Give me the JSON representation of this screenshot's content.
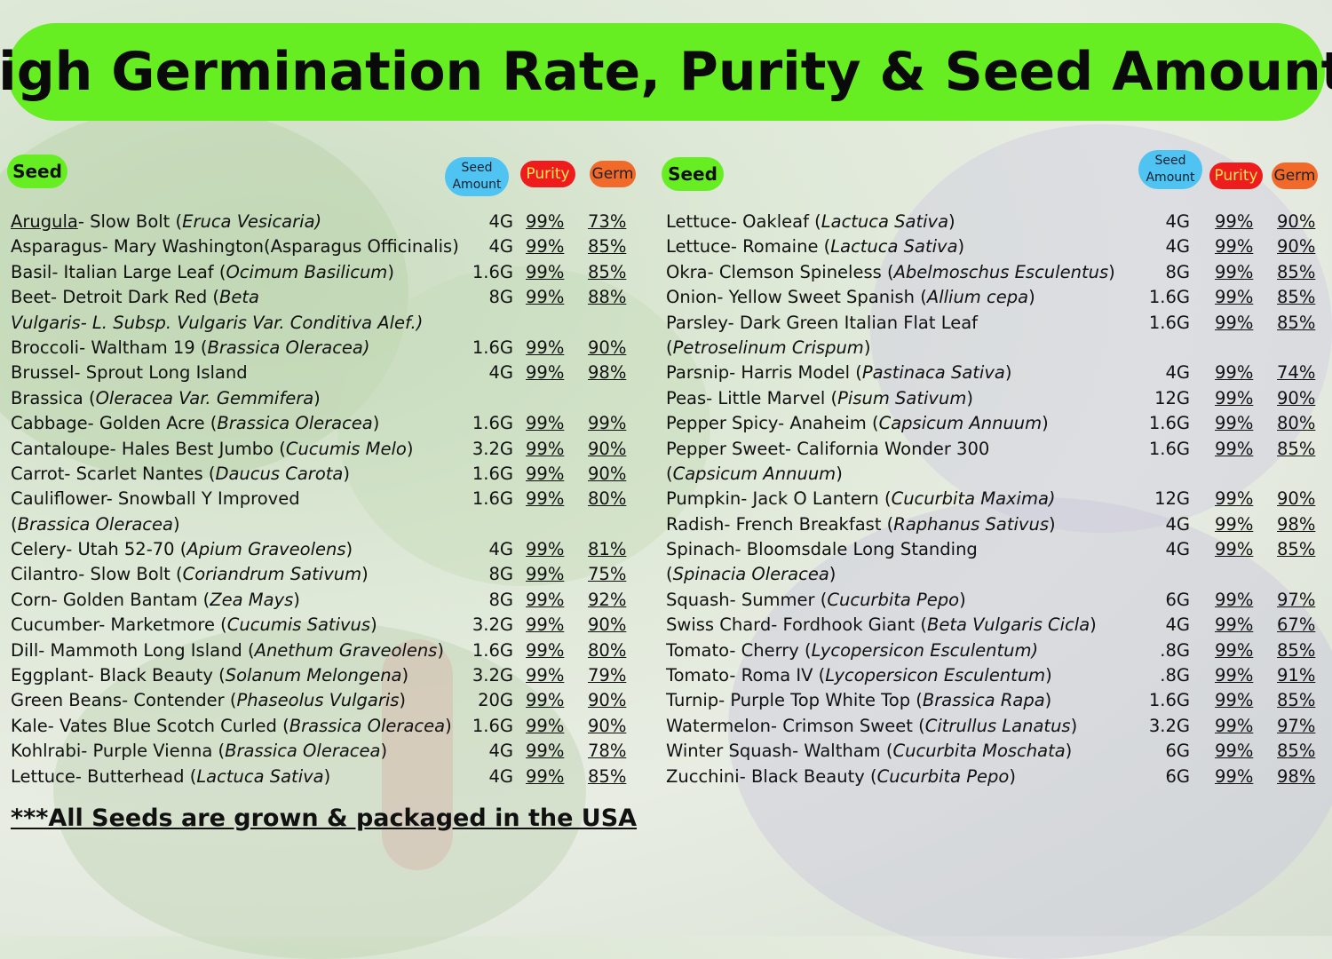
{
  "title": "High Germination Rate, Purity & Seed Amounts",
  "headers": {
    "seed": "Seed",
    "amount_line1": "Seed",
    "amount_line2": "Amount",
    "purity": "Purity",
    "germ": "Germ"
  },
  "left_rows": [
    {
      "name": [
        [
          "Arugula",
          "u"
        ],
        [
          "- Slow Bolt (",
          ""
        ],
        [
          "Eruca Vesicaria)",
          "i"
        ]
      ],
      "amount": "4G",
      "purity": "99%",
      "germ": "73%"
    },
    {
      "name": [
        [
          "Asparagus- Mary Washington(",
          ""
        ],
        [
          "Asparagus Officinalis",
          ""
        ],
        [
          ")",
          ""
        ]
      ],
      "amount": "4G",
      "purity": "99%",
      "germ": "85%"
    },
    {
      "name": [
        [
          "Basil- Italian Large Leaf (",
          ""
        ],
        [
          "Ocimum Basilicum",
          "i"
        ],
        [
          ")",
          ""
        ]
      ],
      "amount": "1.6G",
      "purity": "99%",
      "germ": "85%"
    },
    {
      "name": [
        [
          "Beet- Detroit Dark Red (",
          ""
        ],
        [
          "Beta",
          "i"
        ]
      ],
      "amount": "8G",
      "purity": "99%",
      "germ": "88%"
    },
    {
      "name": [
        [
          "Vulgaris- L. Subsp. Vulgaris Var. Conditiva Alef.)",
          "i"
        ]
      ],
      "amount": "",
      "purity": "",
      "germ": ""
    },
    {
      "name": [
        [
          "Broccoli- Waltham 19 (",
          ""
        ],
        [
          "Brassica Oleracea)",
          "i"
        ]
      ],
      "amount": "1.6G",
      "purity": "99%",
      "germ": "90%"
    },
    {
      "name": [
        [
          "Brussel- Sprout Long Island",
          ""
        ]
      ],
      "amount": "4G",
      "purity": "99%",
      "germ": "98%"
    },
    {
      "name": [
        [
          "Brassica (",
          ""
        ],
        [
          "Oleracea Var. Gemmifera",
          "i"
        ],
        [
          ")",
          ""
        ]
      ],
      "amount": "",
      "purity": "",
      "germ": ""
    },
    {
      "name": [
        [
          "Cabbage- Golden Acre (",
          ""
        ],
        [
          "Brassica Oleracea",
          "i"
        ],
        [
          ")",
          ""
        ]
      ],
      "amount": "1.6G",
      "purity": "99%",
      "germ": "99%"
    },
    {
      "name": [
        [
          "Cantaloupe- Hales Best Jumbo (",
          ""
        ],
        [
          "Cucumis Melo",
          "i"
        ],
        [
          ")",
          ""
        ]
      ],
      "amount": "3.2G",
      "purity": "99%",
      "germ": "90%"
    },
    {
      "name": [
        [
          "Carrot- Scarlet Nantes (",
          ""
        ],
        [
          "Daucus Carota",
          "i"
        ],
        [
          ")",
          ""
        ]
      ],
      "amount": "1.6G",
      "purity": "99%",
      "germ": "90%"
    },
    {
      "name": [
        [
          "Cauliflower- Snowball Y Improved",
          ""
        ]
      ],
      "amount": "1.6G",
      "purity": "99%",
      "germ": "80%"
    },
    {
      "name": [
        [
          "(",
          ""
        ],
        [
          "Brassica Oleracea",
          "i"
        ],
        [
          ")",
          ""
        ]
      ],
      "amount": "",
      "purity": "",
      "germ": ""
    },
    {
      "name": [
        [
          "Celery- Utah 52-70 (",
          ""
        ],
        [
          "Apium Graveolens",
          "i"
        ],
        [
          ")",
          ""
        ]
      ],
      "amount": "4G",
      "purity": "99%",
      "germ": "81%"
    },
    {
      "name": [
        [
          "Cilantro- Slow Bolt (",
          ""
        ],
        [
          "Coriandrum Sativum",
          "i"
        ],
        [
          ")",
          ""
        ]
      ],
      "amount": "8G",
      "purity": "99%",
      "germ": "75%"
    },
    {
      "name": [
        [
          "Corn- Golden Bantam (",
          ""
        ],
        [
          "Zea Mays",
          "i"
        ],
        [
          ")",
          ""
        ]
      ],
      "amount": "8G",
      "purity": "99%",
      "germ": "92%"
    },
    {
      "name": [
        [
          "Cucumber- Marketmore (",
          ""
        ],
        [
          "Cucumis Sativus",
          "i"
        ],
        [
          ")",
          ""
        ]
      ],
      "amount": "3.2G",
      "purity": "99%",
      "germ": "90%"
    },
    {
      "name": [
        [
          "Dill- Mammoth Long Island (",
          ""
        ],
        [
          "Anethum Graveolens",
          "i"
        ],
        [
          ")",
          ""
        ]
      ],
      "amount": "1.6G",
      "purity": "99%",
      "germ": "80%"
    },
    {
      "name": [
        [
          "Eggplant- Black Beauty (",
          ""
        ],
        [
          "Solanum Melongena",
          "i"
        ],
        [
          ")",
          ""
        ]
      ],
      "amount": "3.2G",
      "purity": "99%",
      "germ": "79%"
    },
    {
      "name": [
        [
          "Green Beans- Contender (",
          ""
        ],
        [
          "Phaseolus Vulgaris",
          "i"
        ],
        [
          ")",
          ""
        ]
      ],
      "amount": "20G",
      "purity": "99%",
      "germ": "90%"
    },
    {
      "name": [
        [
          "Kale- Vates Blue Scotch Curled (",
          ""
        ],
        [
          "Brassica Oleracea",
          "i"
        ],
        [
          ")",
          ""
        ]
      ],
      "amount": "1.6G",
      "purity": "99%",
      "germ": "90%"
    },
    {
      "name": [
        [
          "Kohlrabi- Purple Vienna (",
          ""
        ],
        [
          "Brassica Oleracea",
          "i"
        ],
        [
          ")",
          ""
        ]
      ],
      "amount": "4G",
      "purity": "99%",
      "germ": "78%"
    },
    {
      "name": [
        [
          "Lettuce- Butterhead (",
          ""
        ],
        [
          "Lactuca Sativa",
          "i"
        ],
        [
          ")",
          ""
        ]
      ],
      "amount": "4G",
      "purity": "99%",
      "germ": "85%"
    }
  ],
  "right_rows": [
    {
      "name": [
        [
          "Lettuce- Oakleaf (",
          ""
        ],
        [
          "Lactuca Sativa",
          "i"
        ],
        [
          ")",
          ""
        ]
      ],
      "amount": "4G",
      "purity": "99%",
      "germ": "90%"
    },
    {
      "name": [
        [
          "Lettuce- Romaine (",
          ""
        ],
        [
          "Lactuca Sativa",
          "i"
        ],
        [
          ")",
          ""
        ]
      ],
      "amount": "4G",
      "purity": "99%",
      "germ": "90%"
    },
    {
      "name": [
        [
          "Okra- Clemson Spineless (",
          ""
        ],
        [
          "Abelmoschus Esculentus",
          "i"
        ],
        [
          ")",
          ""
        ]
      ],
      "amount": "8G",
      "purity": "99%",
      "germ": "85%"
    },
    {
      "name": [
        [
          "Onion- Yellow Sweet Spanish (",
          ""
        ],
        [
          "Allium cepa",
          "i"
        ],
        [
          ")",
          ""
        ]
      ],
      "amount": "1.6G",
      "purity": "99%",
      "germ": "85%"
    },
    {
      "name": [
        [
          "Parsley- Dark Green Italian Flat Leaf",
          ""
        ]
      ],
      "amount": "1.6G",
      "purity": "99%",
      "germ": "85%"
    },
    {
      "name": [
        [
          "(",
          ""
        ],
        [
          "Petroselinum Crispum",
          "i"
        ],
        [
          ")",
          ""
        ]
      ],
      "amount": "",
      "purity": "",
      "germ": ""
    },
    {
      "name": [
        [
          "Parsnip- Harris Model (",
          ""
        ],
        [
          "Pastinaca Sativa",
          "i"
        ],
        [
          ")",
          ""
        ]
      ],
      "amount": "4G",
      "purity": "99%",
      "germ": "74%"
    },
    {
      "name": [
        [
          "Peas- Little Marvel (",
          ""
        ],
        [
          "Pisum Sativum",
          "i"
        ],
        [
          ")",
          ""
        ]
      ],
      "amount": "12G",
      "purity": "99%",
      "germ": "90%"
    },
    {
      "name": [
        [
          "Pepper Spicy- Anaheim (",
          ""
        ],
        [
          "Capsicum Annuum",
          "i"
        ],
        [
          ")",
          ""
        ]
      ],
      "amount": "1.6G",
      "purity": "99%",
      "germ": "80%"
    },
    {
      "name": [
        [
          "Pepper Sweet- California Wonder 300",
          ""
        ]
      ],
      "amount": "1.6G",
      "purity": "99%",
      "germ": "85%"
    },
    {
      "name": [
        [
          "(",
          ""
        ],
        [
          "Capsicum Annuum",
          "i"
        ],
        [
          ")",
          ""
        ]
      ],
      "amount": "",
      "purity": "",
      "germ": ""
    },
    {
      "name": [
        [
          "Pumpkin- Jack O Lantern (",
          ""
        ],
        [
          "Cucurbita Maxima)",
          "i"
        ]
      ],
      "amount": "12G",
      "purity": "99%",
      "germ": "90%"
    },
    {
      "name": [
        [
          "Radish- French Breakfast (",
          ""
        ],
        [
          "Raphanus Sativus",
          "i"
        ],
        [
          ")",
          ""
        ]
      ],
      "amount": "4G",
      "purity": "99%",
      "germ": "98%"
    },
    {
      "name": [
        [
          "Spinach- Bloomsdale Long Standing",
          ""
        ]
      ],
      "amount": "4G",
      "purity": "99%",
      "germ": "85%"
    },
    {
      "name": [
        [
          "(",
          ""
        ],
        [
          "Spinacia Oleracea",
          "i"
        ],
        [
          ")",
          ""
        ]
      ],
      "amount": "",
      "purity": "",
      "germ": ""
    },
    {
      "name": [
        [
          "Squash- Summer (",
          ""
        ],
        [
          "Cucurbita Pepo",
          "i"
        ],
        [
          ")",
          ""
        ]
      ],
      "amount": "6G",
      "purity": "99%",
      "germ": "97%"
    },
    {
      "name": [
        [
          "Swiss Chard- Fordhook Giant (",
          ""
        ],
        [
          "Beta Vulgaris Cicla",
          "i"
        ],
        [
          ")",
          ""
        ]
      ],
      "amount": "4G",
      "purity": "99%",
      "germ": "67%"
    },
    {
      "name": [
        [
          "Tomato- Cherry (",
          ""
        ],
        [
          "Lycopersicon Esculentum)",
          "i"
        ]
      ],
      "amount": ".8G",
      "purity": "99%",
      "germ": "85%"
    },
    {
      "name": [
        [
          "Tomato- Roma IV  (",
          ""
        ],
        [
          "Lycopersicon Esculentum",
          "i"
        ],
        [
          ")",
          ""
        ]
      ],
      "amount": ".8G",
      "purity": "99%",
      "germ": "91%"
    },
    {
      "name": [
        [
          "Turnip- Purple Top White Top (",
          ""
        ],
        [
          "Brassica Rapa",
          "i"
        ],
        [
          ")",
          ""
        ]
      ],
      "amount": "1.6G",
      "purity": "99%",
      "germ": "85%"
    },
    {
      "name": [
        [
          "Watermelon- Crimson Sweet (",
          ""
        ],
        [
          "Citrullus Lanatus",
          "i"
        ],
        [
          ")",
          ""
        ]
      ],
      "amount": "3.2G",
      "purity": "99%",
      "germ": "97%"
    },
    {
      "name": [
        [
          "Winter Squash- Waltham (",
          ""
        ],
        [
          "Cucurbita Moschata",
          "i"
        ],
        [
          ")",
          ""
        ]
      ],
      "amount": "6G",
      "purity": "99%",
      "germ": "85%"
    },
    {
      "name": [
        [
          "Zucchini-  Black Beauty (",
          ""
        ],
        [
          "Cucurbita Pepo",
          "i"
        ],
        [
          ")",
          ""
        ]
      ],
      "amount": "6G",
      "purity": "99%",
      "germ": "98%"
    }
  ],
  "footer": "***All Seeds are grown & packaged in the USA"
}
